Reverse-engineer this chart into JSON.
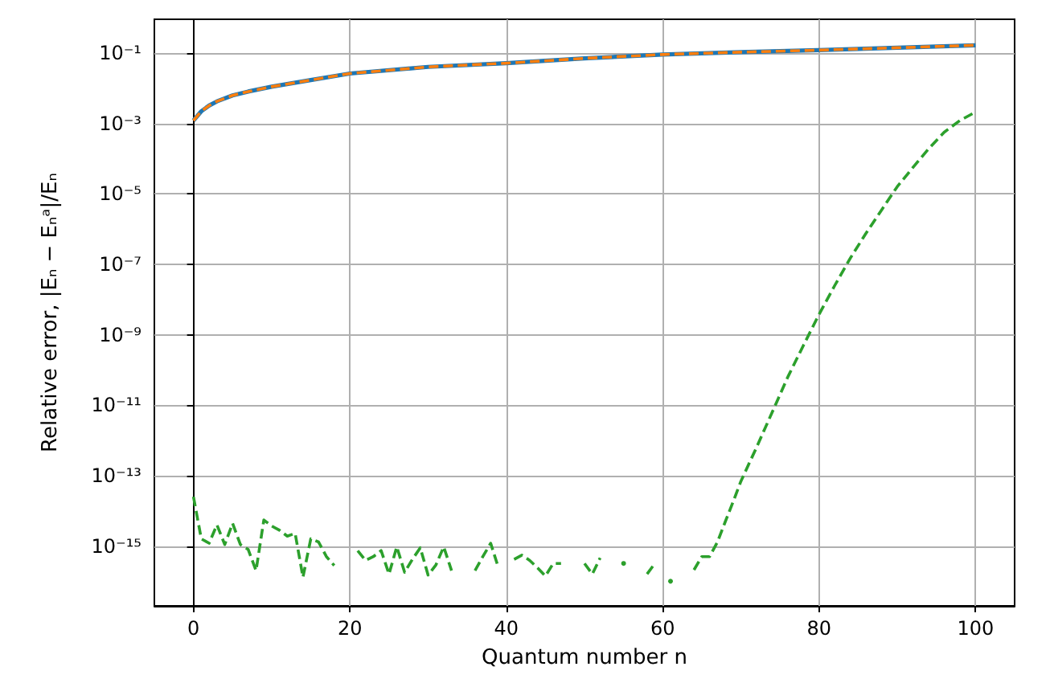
{
  "chart_data": {
    "type": "line",
    "xlabel": "Quantum number n",
    "ylabel": "Relative error, |Eₙ − Eₙᵃ|/Eₙ",
    "xlim": [
      -5,
      105
    ],
    "xticks": [
      0,
      20,
      40,
      60,
      80,
      100
    ],
    "ylim": [
      2e-17,
      0.9
    ],
    "log": "y",
    "grid": true,
    "yticks": [
      {
        "value": 1e-15,
        "label": "10⁻¹⁵"
      },
      {
        "value": 1e-13,
        "label": "10⁻¹³"
      },
      {
        "value": 1e-11,
        "label": "10⁻¹¹"
      },
      {
        "value": 1e-09,
        "label": "10⁻⁹"
      },
      {
        "value": 1e-07,
        "label": "10⁻⁷"
      },
      {
        "value": 1e-05,
        "label": "10⁻⁵"
      },
      {
        "value": 0.001,
        "label": "10⁻³"
      },
      {
        "value": 0.1,
        "label": "10⁻¹"
      }
    ],
    "series": [
      {
        "color": "#1f77b4",
        "line_style": "solid",
        "x": [
          0,
          1,
          2,
          3,
          5,
          7,
          10,
          15,
          20,
          30,
          40,
          50,
          60,
          70,
          80,
          90,
          100
        ],
        "values": [
          0.0012,
          0.0022,
          0.0032,
          0.0042,
          0.0062,
          0.008,
          0.011,
          0.017,
          0.026,
          0.04,
          0.051,
          0.07,
          0.09,
          0.105,
          0.12,
          0.14,
          0.165
        ]
      },
      {
        "color": "#ff7f0e",
        "line_style": "dashed",
        "x": [
          0,
          1,
          2,
          3,
          5,
          7,
          10,
          15,
          20,
          30,
          40,
          50,
          60,
          70,
          80,
          90,
          100
        ],
        "values": [
          0.0012,
          0.0022,
          0.0032,
          0.0042,
          0.0062,
          0.008,
          0.011,
          0.017,
          0.026,
          0.04,
          0.051,
          0.07,
          0.09,
          0.105,
          0.12,
          0.14,
          0.165
        ]
      },
      {
        "color": "#2ca02c",
        "line_style": "dashed",
        "x": [
          0,
          1,
          2,
          3,
          4,
          5,
          6,
          7,
          8,
          9,
          10,
          11,
          12,
          13,
          14,
          15,
          16,
          17,
          18,
          19,
          20,
          21,
          22,
          23,
          24,
          25,
          26,
          27,
          28,
          29,
          30,
          31,
          32,
          33,
          34,
          35,
          36,
          37,
          38,
          39,
          40,
          41,
          42,
          43,
          44,
          45,
          46,
          47,
          48,
          49,
          50,
          51,
          52,
          53,
          54,
          55,
          56,
          57,
          58,
          59,
          60,
          61,
          62,
          63,
          64,
          65,
          66,
          67,
          68,
          69,
          70,
          71,
          72,
          74,
          76,
          78,
          80,
          82,
          84,
          86,
          88,
          90,
          92,
          94,
          96,
          98,
          100
        ],
        "values": [
          2.5e-14,
          1.6e-15,
          1.2e-15,
          4e-15,
          1.1e-15,
          4.4e-15,
          1.1e-15,
          8e-16,
          2e-16,
          5.5e-15,
          3.7e-15,
          2.8e-15,
          1.9e-15,
          2.3e-15,
          1.3e-16,
          1.6e-15,
          1.3e-15,
          5e-16,
          2.8e-16,
          null,
          null,
          7.4e-16,
          3.9e-16,
          5e-16,
          7.4e-16,
          1.6e-16,
          9.5e-16,
          1.8e-16,
          4.2e-16,
          8.9e-16,
          1.5e-16,
          2.9e-16,
          9.5e-16,
          2e-16,
          null,
          null,
          2e-16,
          5e-16,
          1.2e-15,
          2.4e-16,
          null,
          4.2e-16,
          5.5e-16,
          3.9e-16,
          2.4e-16,
          1.4e-16,
          3.2e-16,
          3.2e-16,
          null,
          null,
          3.2e-16,
          1.6e-16,
          4.6e-16,
          null,
          null,
          3.2e-16,
          null,
          null,
          1.6e-16,
          3.2e-16,
          null,
          1e-16,
          null,
          null,
          2.1e-16,
          5e-16,
          5e-16,
          1.3e-15,
          4.9e-15,
          1.8e-14,
          6.9e-14,
          2.1e-13,
          6.3e-13,
          6.3e-12,
          6.3e-11,
          5e-10,
          3.8e-09,
          2.5e-08,
          1.5e-07,
          7.6e-07,
          3.5e-06,
          1.6e-05,
          5.6e-05,
          0.00019,
          0.00056,
          0.0012,
          0.0021
        ]
      }
    ]
  }
}
